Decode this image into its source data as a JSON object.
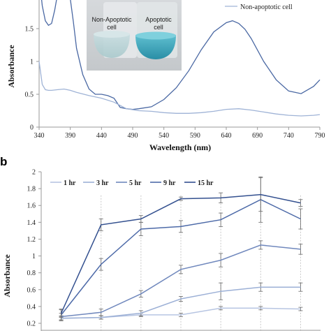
{
  "colors": {
    "apoptotic": "#4a68a3",
    "nonapoptotic": "#9fb3d6",
    "h1": "#b7c5e2",
    "h3": "#9cb0d6",
    "h5": "#7088bd",
    "h9": "#4d6aa8",
    "h15": "#33508f",
    "axis": "#9a9a9a",
    "grid": "#c8c8c8"
  },
  "chart_data": [
    {
      "type": "line",
      "panel": "",
      "title": "",
      "xlabel": "Wavelength (nm)",
      "ylabel": "Absorbance",
      "xlim": [
        340,
        790
      ],
      "ylim": [
        0,
        2
      ],
      "xticks": [
        "340",
        "390",
        "440",
        "490",
        "540",
        "590",
        "640",
        "690",
        "740",
        "790"
      ],
      "yticks": [
        "0",
        "0.5",
        "1",
        "1.5",
        "2"
      ],
      "grid": false,
      "legend_position": "top-right",
      "legend": [
        "Non-apoptotic cell"
      ],
      "inset_photo": {
        "labels": [
          "Non-Apoptotic cell",
          "Apoptotic cell"
        ]
      },
      "series": [
        {
          "key": "apoptotic",
          "x": [
            340,
            345,
            350,
            355,
            360,
            365,
            370,
            375,
            380,
            385,
            390,
            395,
            400,
            410,
            420,
            430,
            440,
            450,
            460,
            465,
            470,
            480,
            490,
            500,
            520,
            540,
            560,
            580,
            600,
            620,
            640,
            650,
            660,
            670,
            680,
            700,
            720,
            740,
            760,
            780,
            790
          ],
          "y": [
            2.3,
            1.85,
            1.62,
            1.55,
            1.58,
            1.78,
            2.05,
            2.25,
            2.3,
            2.25,
            1.95,
            1.6,
            1.2,
            0.8,
            0.58,
            0.5,
            0.5,
            0.48,
            0.44,
            0.37,
            0.3,
            0.28,
            0.27,
            0.28,
            0.31,
            0.42,
            0.6,
            0.86,
            1.18,
            1.45,
            1.59,
            1.62,
            1.58,
            1.49,
            1.35,
            1.0,
            0.72,
            0.55,
            0.51,
            0.62,
            0.72
          ]
        },
        {
          "key": "nonapoptotic",
          "name": "Non-apoptotic cell",
          "x": [
            340,
            345,
            350,
            355,
            360,
            370,
            380,
            390,
            400,
            420,
            440,
            460,
            480,
            500,
            520,
            540,
            560,
            580,
            600,
            620,
            640,
            660,
            680,
            700,
            720,
            740,
            760,
            780,
            790
          ],
          "y": [
            1.0,
            0.65,
            0.57,
            0.56,
            0.56,
            0.57,
            0.58,
            0.56,
            0.53,
            0.48,
            0.44,
            0.38,
            0.28,
            0.25,
            0.24,
            0.22,
            0.21,
            0.21,
            0.22,
            0.24,
            0.27,
            0.28,
            0.26,
            0.23,
            0.2,
            0.18,
            0.17,
            0.18,
            0.19
          ]
        }
      ]
    },
    {
      "type": "line",
      "panel": "b",
      "title": "",
      "xlabel": "",
      "ylabel": "Absorbance",
      "x": [
        0,
        1,
        2,
        3,
        4,
        5,
        6
      ],
      "ylim": [
        0.2,
        2
      ],
      "yticks": [
        "0.2",
        "0.4",
        "0.6",
        "0.8",
        "1",
        "1.2",
        "1.4",
        "1.6",
        "1.8",
        "2"
      ],
      "grid": "vertical dashed",
      "legend_position": "top-left",
      "series": [
        {
          "key": "h1",
          "name": "1 hr",
          "values": [
            0.26,
            0.27,
            0.3,
            0.3,
            0.38,
            0.38,
            0.37
          ],
          "err": [
            0.02,
            0.02,
            0.02,
            0.02,
            0.02,
            0.02,
            0.02
          ]
        },
        {
          "key": "h3",
          "name": "3 hr",
          "values": [
            0.26,
            0.27,
            0.32,
            0.49,
            0.58,
            0.63,
            0.63
          ],
          "err": [
            0.03,
            0.02,
            0.03,
            0.03,
            0.1,
            0.05,
            0.05
          ]
        },
        {
          "key": "h5",
          "name": "5 hr",
          "values": [
            0.28,
            0.33,
            0.55,
            0.84,
            0.95,
            1.13,
            1.08
          ],
          "err": [
            0.04,
            0.04,
            0.04,
            0.05,
            0.08,
            0.05,
            0.06
          ]
        },
        {
          "key": "h9",
          "name": "9 hr",
          "values": [
            0.3,
            0.9,
            1.32,
            1.35,
            1.43,
            1.67,
            1.44
          ],
          "err": [
            0.06,
            0.07,
            0.08,
            0.07,
            0.08,
            0.27,
            0.12
          ]
        },
        {
          "key": "h15",
          "name": "15 hr",
          "values": [
            0.32,
            1.37,
            1.44,
            1.68,
            1.69,
            1.73,
            1.63
          ],
          "err": [
            0.05,
            0.07,
            0.04,
            0.02,
            0.06,
            0.2,
            0.04
          ]
        }
      ]
    }
  ]
}
